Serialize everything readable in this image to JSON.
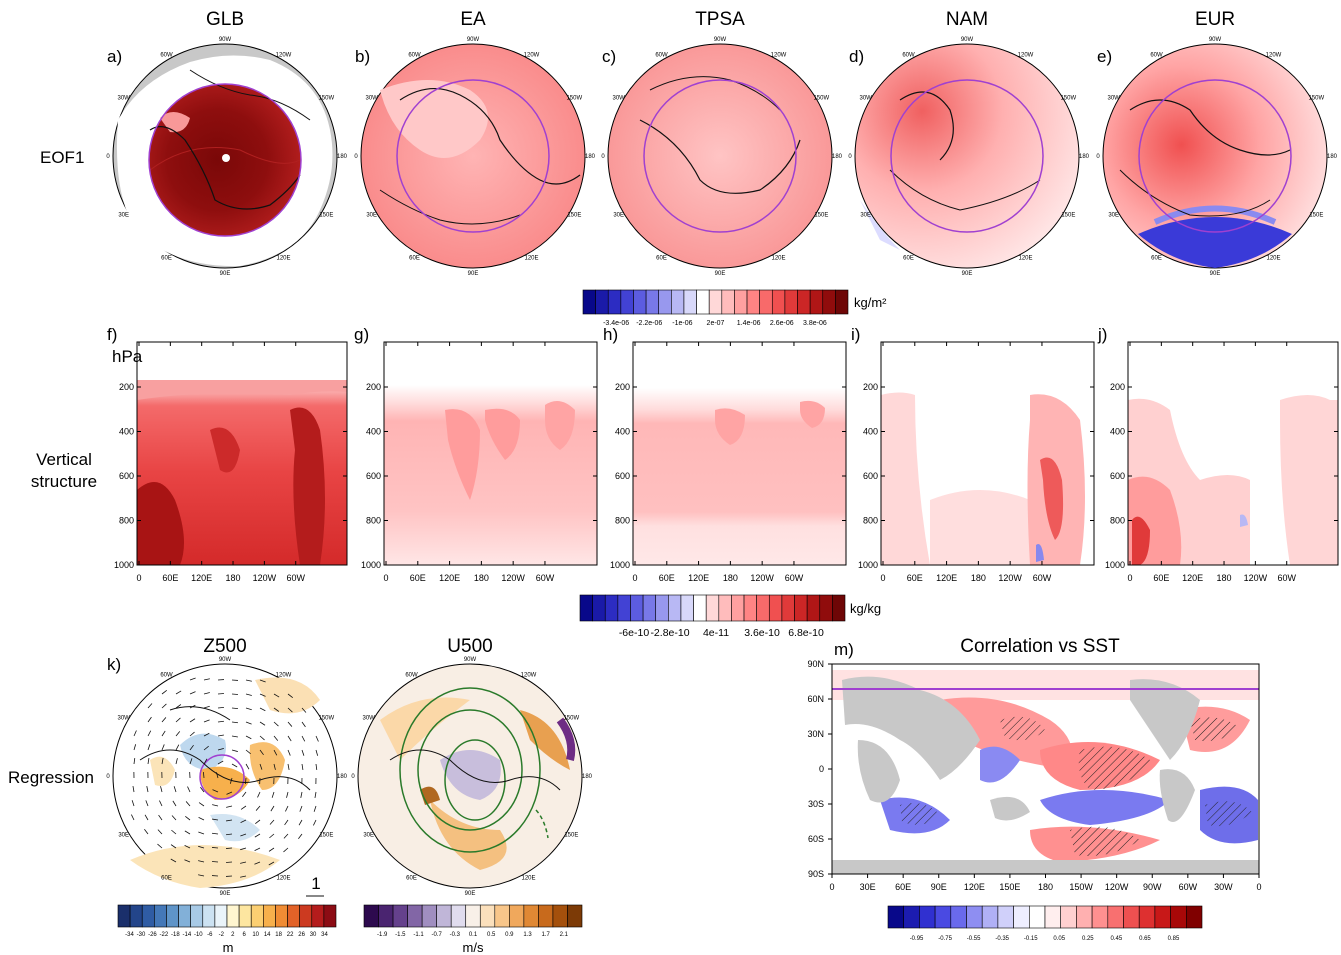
{
  "row_labels": {
    "eof": "EOF1",
    "vertical": [
      "Vertical",
      "structure"
    ],
    "regression": "Regression"
  },
  "chart_data": [
    {
      "type": "heatmap",
      "projection": "north-polar-stereographic",
      "panels": [
        {
          "label": "a)",
          "title": "GLB"
        },
        {
          "label": "b)",
          "title": "EA"
        },
        {
          "label": "c)",
          "title": "TPSA"
        },
        {
          "label": "d)",
          "title": "NAM"
        },
        {
          "label": "e)",
          "title": "EUR"
        }
      ],
      "lon_labels": [
        "90W",
        "120W",
        "150W",
        "180",
        "150E",
        "120E",
        "90E",
        "60E",
        "30E",
        "0",
        "30W",
        "60W"
      ],
      "colorbar": {
        "unit": "kg/m²",
        "tick_labels": [
          "-3.4e-06",
          "-2.2e-06",
          "-1e-06",
          "2e-07",
          "1.4e-06",
          "2.6e-06",
          "3.8e-06"
        ],
        "colors": [
          "#08088a",
          "#1a1aa8",
          "#2c2cc2",
          "#4242d4",
          "#5c5ce0",
          "#7878e8",
          "#9898ee",
          "#b8b8f4",
          "#d8d8fa",
          "#ffffff",
          "#ffd8d8",
          "#ffbcbc",
          "#ffa0a0",
          "#ff8484",
          "#f86a6a",
          "#f05050",
          "#e03a3a",
          "#cc2626",
          "#b01616",
          "#900c0c",
          "#6e0606"
        ]
      }
    },
    {
      "type": "heatmap",
      "panels": [
        {
          "label": "f)"
        },
        {
          "label": "g)"
        },
        {
          "label": "h)"
        },
        {
          "label": "i)"
        },
        {
          "label": "j)"
        }
      ],
      "y_unit": "hPa",
      "y_ticks": [
        "200",
        "400",
        "600",
        "800",
        "1000"
      ],
      "x_ticks": [
        "0",
        "60E",
        "120E",
        "180",
        "120W",
        "60W"
      ],
      "colorbar": {
        "unit": "kg/kg",
        "tick_labels": [
          "-6e-10",
          "-2.8e-10",
          "4e-11",
          "3.6e-10",
          "6.8e-10"
        ]
      }
    },
    {
      "type": "heatmap",
      "projection": "north-polar-stereographic",
      "panels": [
        {
          "label": "k)",
          "title": "Z500",
          "unit": "m",
          "tick_labels": [
            "-34",
            "-30",
            "-26",
            "-22",
            "-18",
            "-14",
            "-10",
            "-6",
            "-2",
            "2",
            "6",
            "10",
            "14",
            "18",
            "22",
            "26",
            "30",
            "34"
          ],
          "colors": [
            "#1a2f6b",
            "#23458a",
            "#2f5ca4",
            "#4478b8",
            "#5f94c8",
            "#82b0d8",
            "#a8cae6",
            "#cce2f2",
            "#eaf4fa",
            "#fff6d0",
            "#fde6a0",
            "#fbcf72",
            "#f7b04c",
            "#f08c34",
            "#e26228",
            "#cc3a20",
            "#b41c1c",
            "#8c0c14"
          ],
          "vector_reference": "1"
        },
        {
          "label": "",
          "title": "U500",
          "unit": "m/s",
          "tick_labels": [
            "-1.9",
            "-1.5",
            "-1.1",
            "-0.7",
            "-0.3",
            "0.1",
            "0.5",
            "0.9",
            "1.3",
            "1.7",
            "2.1"
          ],
          "colors": [
            "#2d0a4e",
            "#4a2470",
            "#65418c",
            "#8266a6",
            "#a08ec0",
            "#c0b6d8",
            "#e0dcee",
            "#f8f0e8",
            "#fbe0bc",
            "#f8c68a",
            "#f0a85c",
            "#e08834",
            "#c86a1c",
            "#a4500c",
            "#7c3a06"
          ]
        }
      ]
    },
    {
      "type": "heatmap",
      "label": "m)",
      "title": "Correlation vs SST",
      "y_ticks": [
        "90N",
        "60N",
        "30N",
        "0",
        "30S",
        "60S",
        "90S"
      ],
      "x_ticks": [
        "0",
        "30E",
        "60E",
        "90E",
        "120E",
        "150E",
        "180",
        "150W",
        "120W",
        "90W",
        "60W",
        "30W",
        "0"
      ],
      "colorbar": {
        "tick_labels": [
          "-0.95",
          "-0.75",
          "-0.55",
          "-0.35",
          "-0.15",
          "0.05",
          "0.25",
          "0.45",
          "0.65",
          "0.85"
        ],
        "colors": [
          "#08088a",
          "#1c1cb0",
          "#3030d0",
          "#4a4ae2",
          "#6a6aec",
          "#8e8ef2",
          "#b0b0f6",
          "#d0d0fa",
          "#eeeeff",
          "#ffffff",
          "#ffeeee",
          "#ffd0d0",
          "#ffb0b0",
          "#ff9090",
          "#f87070",
          "#ee5050",
          "#de3030",
          "#c81818",
          "#a80808",
          "#800000"
        ]
      }
    }
  ]
}
